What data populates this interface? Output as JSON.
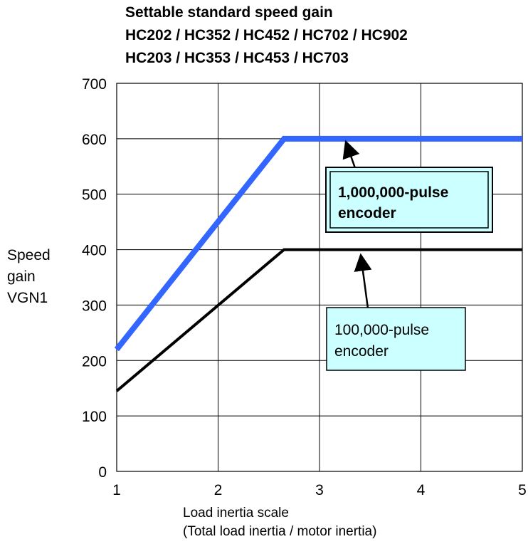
{
  "chart_data": {
    "type": "line",
    "title": [
      "Settable standard speed gain",
      "HC202 / HC352 / HC452 / HC702 / HC902",
      "HC203 / HC353 / HC453 / HC703"
    ],
    "ylabel": [
      "Speed",
      "gain",
      "VGN1"
    ],
    "xlabel": [
      "Load inertia scale",
      "(Total load inertia / motor inertia)"
    ],
    "xlim": [
      1,
      5
    ],
    "ylim": [
      0,
      700
    ],
    "xticks": [
      "1",
      "2",
      "3",
      "4",
      "5"
    ],
    "yticks": [
      "0",
      "100",
      "200",
      "300",
      "400",
      "500",
      "600",
      "700"
    ],
    "grid": true,
    "series": [
      {
        "name": "1,000,000-pulse encoder",
        "color": "#3366ff",
        "bold": true,
        "x": [
          1,
          2.65,
          5
        ],
        "y": [
          220,
          600,
          600
        ]
      },
      {
        "name": "100,000-pulse encoder",
        "color": "#000000",
        "bold": false,
        "x": [
          1,
          2.65,
          5
        ],
        "y": [
          145,
          400,
          400
        ]
      }
    ],
    "annotation_fill": "#ccffff"
  }
}
